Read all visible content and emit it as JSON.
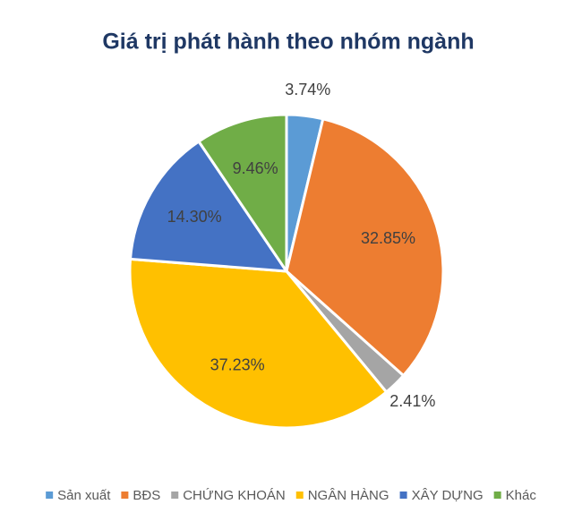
{
  "chart_data": {
    "type": "pie",
    "title": "Giá trị phát hành theo nhóm ngành",
    "categories": [
      "Sản xuất",
      "BĐS",
      "CHỨNG KHOÁN",
      "NGÂN HÀNG",
      "XÂY DỰNG",
      "Khác"
    ],
    "values": [
      3.74,
      32.85,
      2.41,
      37.23,
      14.3,
      9.46
    ],
    "value_labels": [
      "3.74%",
      "32.85%",
      "2.41%",
      "37.23%",
      "14.30%",
      "9.46%"
    ],
    "colors": [
      "#5b9bd5",
      "#ed7d31",
      "#a5a5a5",
      "#ffc000",
      "#4472c4",
      "#70ad47"
    ],
    "legend": "bottom"
  }
}
